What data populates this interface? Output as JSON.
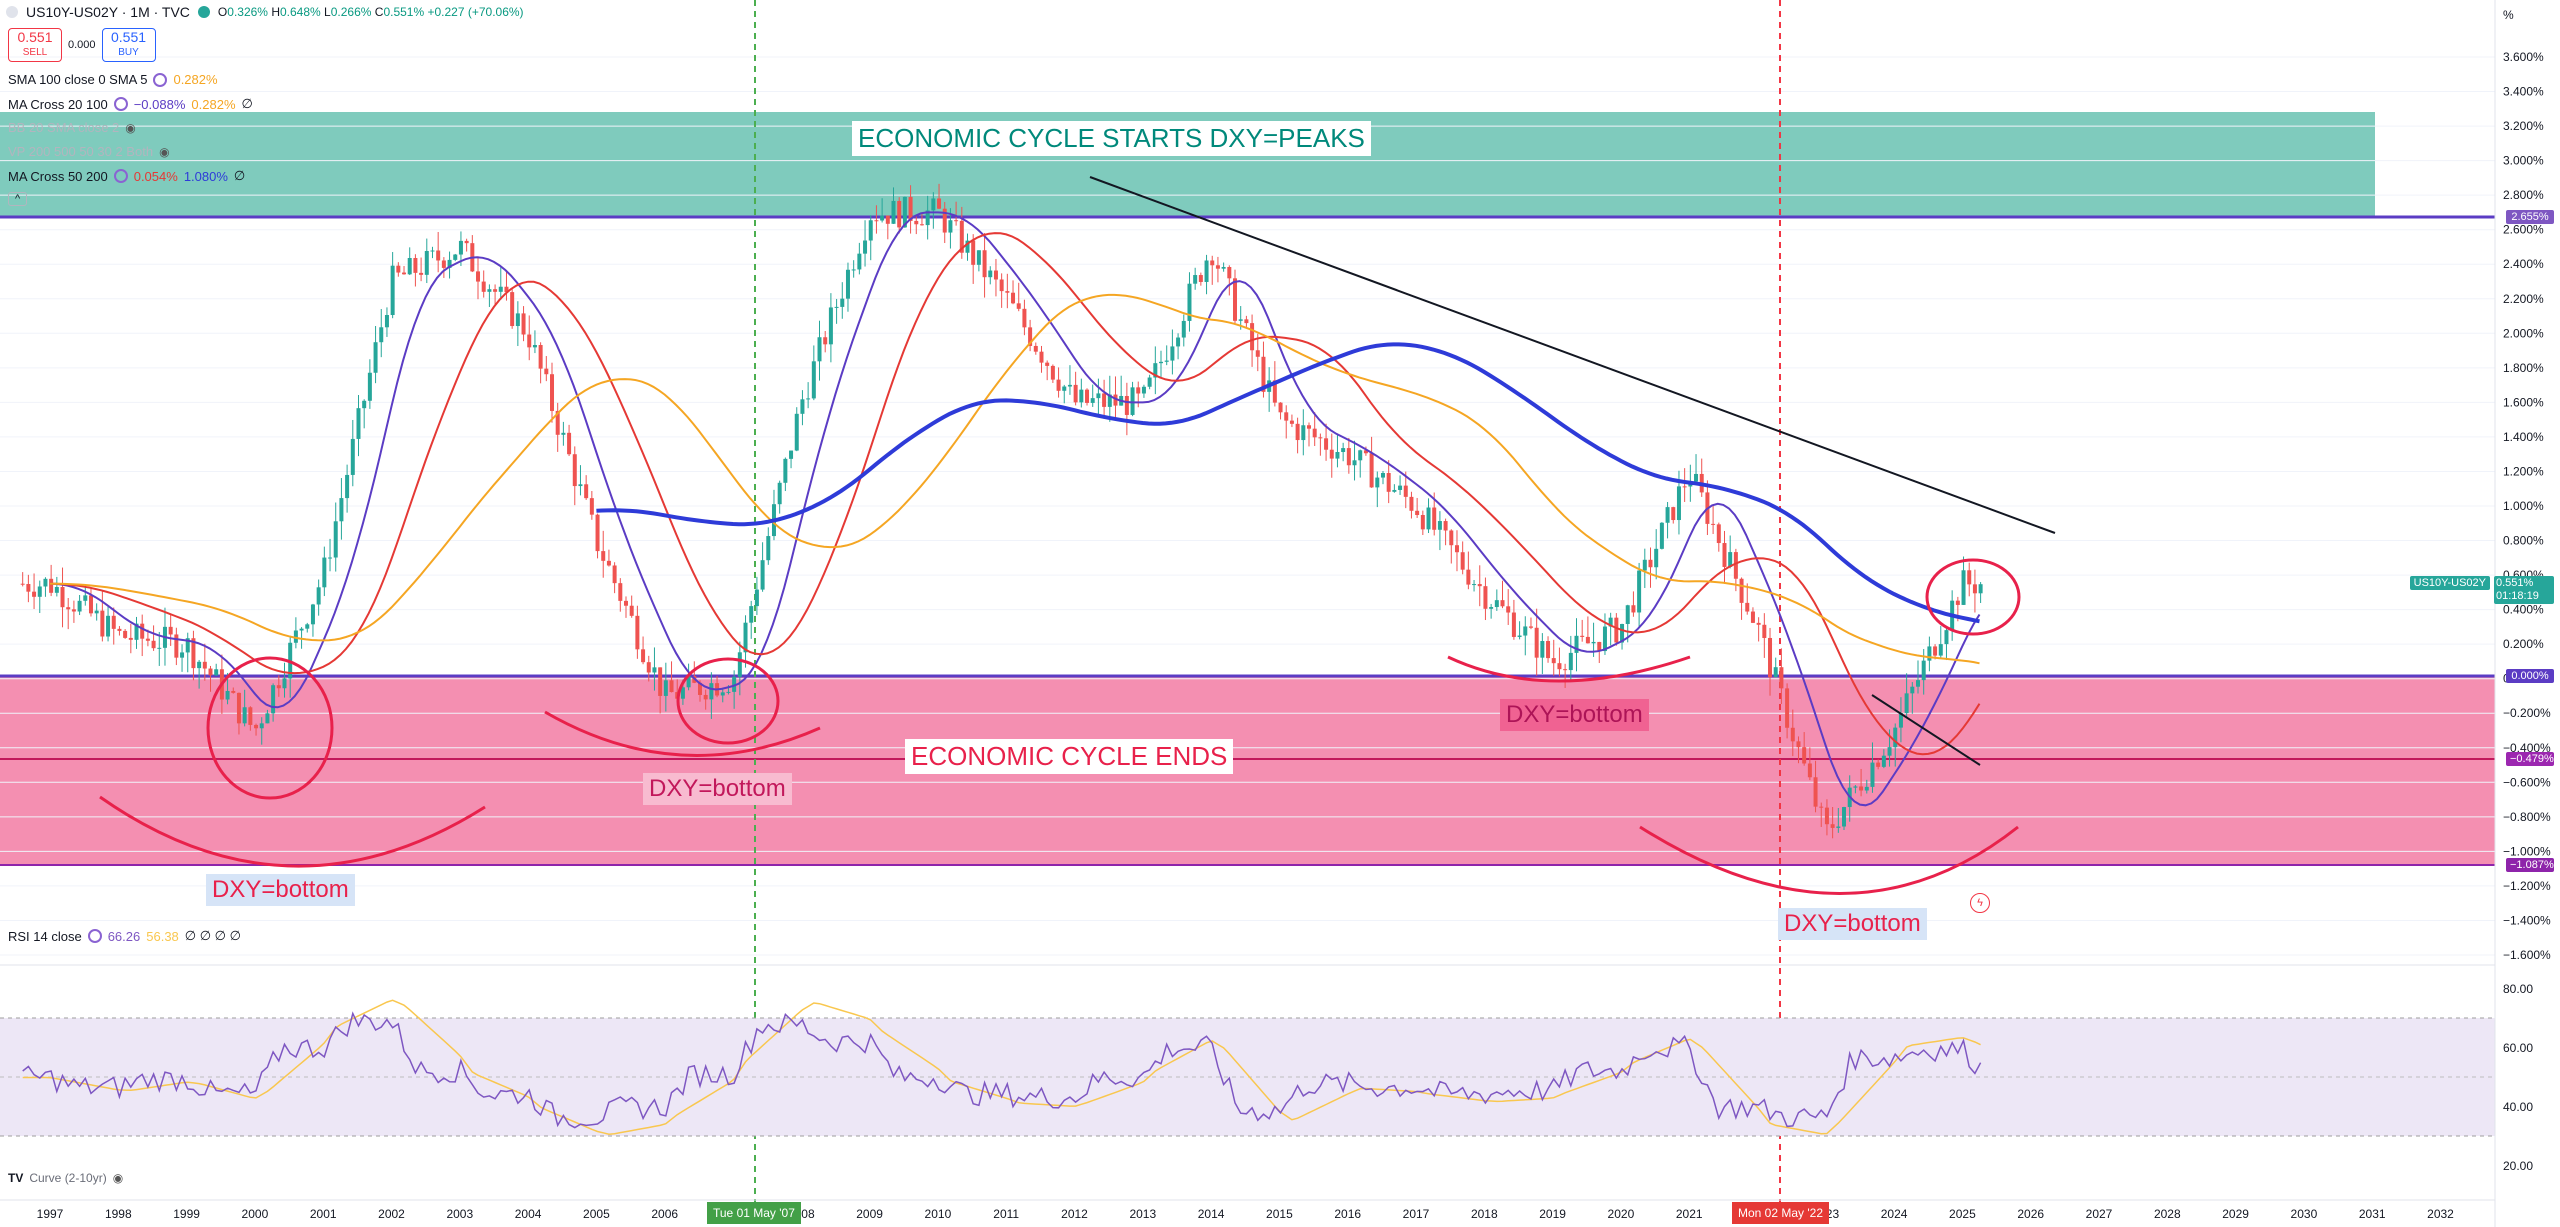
{
  "header": {
    "symbol": "US10Y-US02Y · 1M · TVC",
    "ohlc": [
      {
        "k": "O",
        "v": "0.326%"
      },
      {
        "k": "H",
        "v": "0.648%"
      },
      {
        "k": "L",
        "v": "0.266%"
      },
      {
        "k": "C",
        "v": "0.551%"
      }
    ],
    "change": "+0.227 (+70.06%)"
  },
  "trade": {
    "sell_price": "0.551",
    "sell_label": "SELL",
    "spread": "0.000",
    "buy_price": "0.551",
    "buy_label": "BUY"
  },
  "indicators": {
    "sma": {
      "name": "SMA 100 close 0 SMA 5",
      "v1": "0.282%"
    },
    "ma20": {
      "name": "MA Cross 20 100",
      "v1": "−0.088%",
      "v2": "0.282%",
      "tail": "∅"
    },
    "bb": {
      "name": "BB 20 SMA close 2"
    },
    "vp": {
      "name": "VP 200 500 50 30 2 Both"
    },
    "ma50": {
      "name": "MA Cross 50 200",
      "v1": "0.054%",
      "v2": "1.080%",
      "tail": "∅"
    },
    "collapse": "^"
  },
  "rsi": {
    "name": "RSI 14 close",
    "v1": "66.26",
    "v2": "56.38",
    "tail": "∅ ∅ ∅ ∅"
  },
  "curve_label": "Curve (2-10yr)",
  "annotations": {
    "top": "ECONOMIC CYCLE STARTS DXY=PEAKS",
    "mid": "ECONOMIC CYCLE ENDS",
    "dxy1": "DXY=bottom",
    "dxy2": "DXY=bottom",
    "dxy3": "DXY=bottom",
    "dxy4": "DXY=bottom"
  },
  "axis": {
    "pct_sign": "%",
    "y_ticks": [
      "3.600%",
      "3.400%",
      "3.200%",
      "3.000%",
      "2.800%",
      "2.600%",
      "2.400%",
      "2.200%",
      "2.000%",
      "1.800%",
      "1.600%",
      "1.400%",
      "1.200%",
      "1.000%",
      "0.800%",
      "0.600%",
      "0.400%",
      "0.200%",
      "0.000%",
      "−0.200%",
      "−0.400%",
      "−0.600%",
      "−0.800%",
      "−1.000%",
      "−1.200%",
      "−1.400%",
      "−1.600%"
    ],
    "rsi_ticks": [
      "80.00",
      "60.00",
      "40.00",
      "20.00"
    ],
    "years": [
      "1997",
      "1998",
      "1999",
      "2000",
      "2001",
      "2002",
      "2003",
      "2004",
      "2005",
      "2006",
      "2007",
      "2008",
      "2009",
      "2010",
      "2011",
      "2012",
      "2013",
      "2014",
      "2015",
      "2016",
      "2017",
      "2018",
      "2019",
      "2020",
      "2021",
      "2022",
      "2023",
      "2024",
      "2025",
      "2026",
      "2027",
      "2028",
      "2029",
      "2030",
      "2031",
      "2032"
    ],
    "date_badge_1": "Tue 01 May '07",
    "date_badge_2": "Mon 02 May '22"
  },
  "badges": {
    "level_top": "2.655%",
    "level_zero": "0.000%",
    "level_mid": "−0.479%",
    "level_low": "−1.087%",
    "price_name": "US10Y-US02Y",
    "price": "0.551%",
    "countdown": "01:18:19"
  },
  "colors": {
    "teal_zone": "#7fcbbd",
    "pink_zone": "#f48fb1",
    "up": "#26a69a",
    "down": "#ef5350",
    "ma_blue": "#2e3bd8",
    "ma_purple": "#5b3cc4",
    "ma_orange": "#f5a623",
    "ma_red": "#e53935"
  },
  "chart_data": {
    "type": "line",
    "title": "US10Y-US02Y · 1M · TVC",
    "x": [
      1997,
      1998,
      1999,
      2000,
      2001,
      2002,
      2003,
      2004,
      2005,
      2006,
      2007,
      2008,
      2009,
      2010,
      2011,
      2012,
      2013,
      2014,
      2015,
      2016,
      2017,
      2018,
      2019,
      2020,
      2021,
      2022,
      2023,
      2024,
      2025
    ],
    "series": [
      {
        "name": "US10Y-US02Y",
        "values": [
          0.55,
          0.25,
          0.2,
          -0.3,
          0.6,
          2.3,
          2.5,
          2.0,
          0.8,
          -0.1,
          0.0,
          1.6,
          2.7,
          2.7,
          2.2,
          1.6,
          1.6,
          2.5,
          1.5,
          1.3,
          1.0,
          0.5,
          0.1,
          0.3,
          1.2,
          0.3,
          -0.9,
          -0.3,
          0.55
        ]
      }
    ],
    "ylim": [
      -1.6,
      3.6
    ],
    "levels": [
      2.655,
      0.0,
      -0.479,
      -1.087
    ],
    "rsi": {
      "name": "RSI 14 close",
      "last": 66.26,
      "ma": 56.38,
      "ylim": [
        20,
        80
      ]
    }
  }
}
